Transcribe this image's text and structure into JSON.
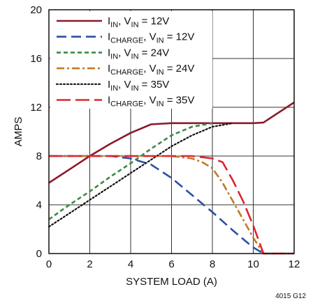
{
  "chart_data": {
    "type": "line",
    "xlabel": "SYSTEM LOAD (A)",
    "ylabel": "AMPS",
    "xlim": [
      0,
      12
    ],
    "ylim": [
      0,
      20
    ],
    "xticks": [
      0,
      2,
      4,
      6,
      8,
      10,
      12
    ],
    "yticks": [
      0,
      4,
      8,
      12,
      16,
      20
    ],
    "grid": true,
    "legend_position": "top-left",
    "figure_id": "4015 G12",
    "series": [
      {
        "name_main": "I",
        "name_sub": "IN",
        "name_mid": ", V",
        "name_sub2": "IN",
        "name_end": " = 12V",
        "color": "#8b1a2b",
        "dash": "solid",
        "x": [
          0,
          1,
          2,
          3,
          4,
          5,
          6,
          7,
          8,
          9,
          10,
          10.5,
          12
        ],
        "y": [
          5.8,
          6.9,
          8.0,
          9.0,
          9.9,
          10.6,
          10.7,
          10.7,
          10.7,
          10.7,
          10.7,
          10.75,
          12.4
        ]
      },
      {
        "name_main": "I",
        "name_sub": "CHARGE",
        "name_mid": ", V",
        "name_sub2": "IN",
        "name_end": " = 12V",
        "color": "#2b4fa3",
        "dash": "dashed",
        "x": [
          0,
          3,
          4,
          5,
          6,
          7,
          8,
          9,
          10,
          10.5,
          12
        ],
        "y": [
          8.0,
          8.0,
          7.8,
          7.3,
          6.2,
          4.8,
          3.4,
          1.9,
          0.5,
          0,
          0
        ]
      },
      {
        "name_main": "I",
        "name_sub": "IN",
        "name_mid": ", V",
        "name_sub2": "IN",
        "name_end": " = 24V",
        "color": "#3a8a45",
        "dash": "short-dash",
        "x": [
          0,
          1,
          2,
          3,
          4,
          5,
          6,
          7,
          8
        ],
        "y": [
          2.8,
          4.0,
          5.1,
          6.3,
          7.4,
          8.6,
          9.7,
          10.4,
          10.7
        ]
      },
      {
        "name_main": "I",
        "name_sub": "CHARGE",
        "name_mid": ", V",
        "name_sub2": "IN",
        "name_end": " = 24V",
        "color": "#c07a28",
        "dash": "dash-dot",
        "x": [
          0,
          5,
          6,
          7,
          7.5,
          8,
          8.5,
          9,
          9.5,
          10,
          10.5,
          12
        ],
        "y": [
          8.0,
          8.0,
          8.0,
          7.8,
          7.5,
          7.0,
          5.8,
          4.3,
          2.8,
          1.3,
          0,
          0
        ]
      },
      {
        "name_main": "I",
        "name_sub": "IN",
        "name_mid": ", V",
        "name_sub2": "IN",
        "name_end": " = 35V",
        "color": "#111111",
        "dash": "dotted",
        "x": [
          0,
          1,
          2,
          3,
          4,
          5,
          6,
          7,
          8,
          9
        ],
        "y": [
          2.2,
          3.3,
          4.4,
          5.5,
          6.6,
          7.7,
          8.8,
          9.7,
          10.4,
          10.7
        ]
      },
      {
        "name_main": "I",
        "name_sub": "CHARGE",
        "name_mid": ", V",
        "name_sub2": "IN",
        "name_end": " = 35V",
        "color": "#e02430",
        "dash": "long-dash",
        "x": [
          0,
          6,
          7,
          8,
          8.5,
          9,
          9.5,
          10,
          10.5,
          12
        ],
        "y": [
          8.0,
          8.0,
          8.0,
          7.8,
          7.5,
          6.0,
          4.3,
          2.3,
          0,
          0
        ]
      }
    ]
  }
}
